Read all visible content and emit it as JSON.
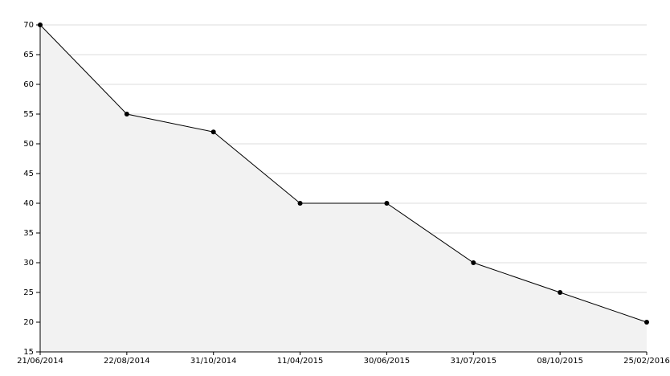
{
  "chart_data": {
    "type": "area",
    "categories": [
      "21/06/2014",
      "22/08/2014",
      "31/10/2014",
      "11/04/2015",
      "30/06/2015",
      "31/07/2015",
      "08/10/2015",
      "25/02/2016"
    ],
    "values": [
      70,
      55,
      52,
      40,
      40,
      30,
      25,
      20
    ],
    "color": "#000000",
    "fill": "#f2f2f2",
    "ylim": [
      15,
      70
    ],
    "yticks": [
      15,
      20,
      25,
      30,
      35,
      40,
      45,
      50,
      55,
      60,
      65,
      70
    ],
    "grid": true
  }
}
